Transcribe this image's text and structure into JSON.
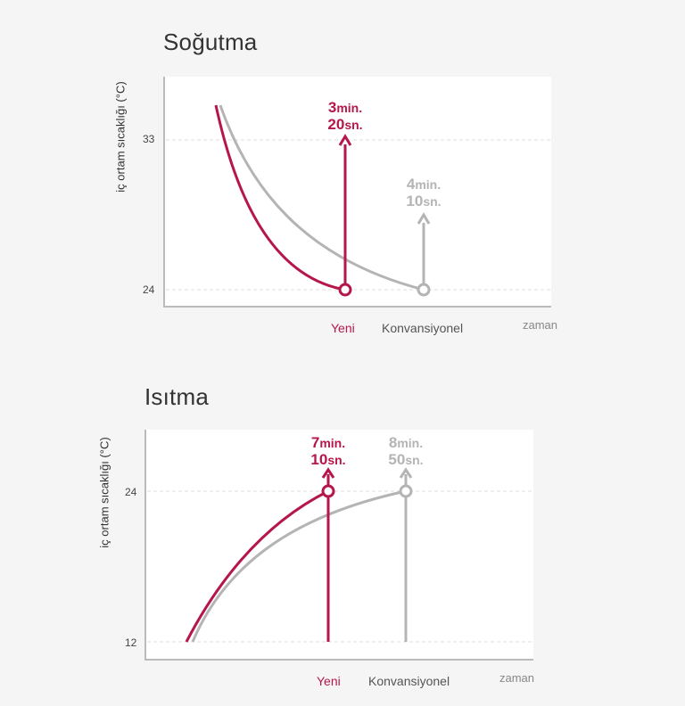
{
  "colors": {
    "new": "#b5174a",
    "conventional": "#b4b4b4",
    "grid": "#dddddd",
    "axis": "#bbbbbb"
  },
  "chart_data": [
    {
      "type": "line",
      "title": "Soğutma",
      "ylabel": "iç ortam sıcaklığı (°C)",
      "xlabel": "zaman",
      "yticks": [
        33,
        24
      ],
      "ylim": [
        22.9,
        36.7
      ],
      "xlim": [
        0,
        10
      ],
      "grid": true,
      "series": [
        {
          "name": "Yeni",
          "color_key": "new",
          "x": [
            1.0,
            1.3,
            1.8,
            2.5,
            3.3,
            4.0
          ],
          "y": [
            35.5,
            32.0,
            28.8,
            26.4,
            24.9,
            24.0
          ]
        },
        {
          "name": "Konvansiyonel",
          "color_key": "conventional",
          "x": [
            1.1,
            1.8,
            2.8,
            3.8,
            4.8,
            5.7
          ],
          "y": [
            35.5,
            32.0,
            28.8,
            26.4,
            24.9,
            24.0
          ]
        }
      ],
      "markers": [
        {
          "series": "Yeni",
          "x": 4.0,
          "y": 24,
          "arrow_to": 33.8,
          "value": "3",
          "unit": "min.",
          "value2": "20",
          "unit2": "sn."
        },
        {
          "series": "Konvansiyonel",
          "x": 5.7,
          "y": 24,
          "arrow_to": 28.5,
          "value": "4",
          "unit": "min.",
          "value2": "10",
          "unit2": "sn."
        }
      ]
    },
    {
      "type": "line",
      "title": "Isıtma",
      "ylabel": "iç ortam sıcaklığı (°C)",
      "xlabel": "zaman",
      "yticks": [
        24,
        12
      ],
      "ylim": [
        10.6,
        29.0
      ],
      "xlim": [
        0,
        10
      ],
      "grid": true,
      "series": [
        {
          "name": "Yeni",
          "color_key": "new",
          "x": [
            1.0,
            1.7,
            2.5,
            3.3,
            4.2,
            4.8
          ],
          "y": [
            12.0,
            16.0,
            19.3,
            21.6,
            23.2,
            24.0
          ]
        },
        {
          "name": "Konvansiyonel",
          "color_key": "conventional",
          "x": [
            1.2,
            2.3,
            3.6,
            4.9,
            6.1,
            6.9
          ],
          "y": [
            12.0,
            16.0,
            19.3,
            21.6,
            23.2,
            24.0
          ]
        }
      ],
      "markers": [
        {
          "series": "Yeni",
          "x": 4.8,
          "y": 24,
          "arrow_to": 25.6,
          "stem_from": 12,
          "value": "7",
          "unit": "min.",
          "value2": "10",
          "unit2": "sn."
        },
        {
          "series": "Konvansiyonel",
          "x": 6.9,
          "y": 24,
          "arrow_to": 25.6,
          "stem_from": 12,
          "value": "8",
          "unit": "min.",
          "value2": "50",
          "unit2": "sn."
        }
      ]
    }
  ]
}
